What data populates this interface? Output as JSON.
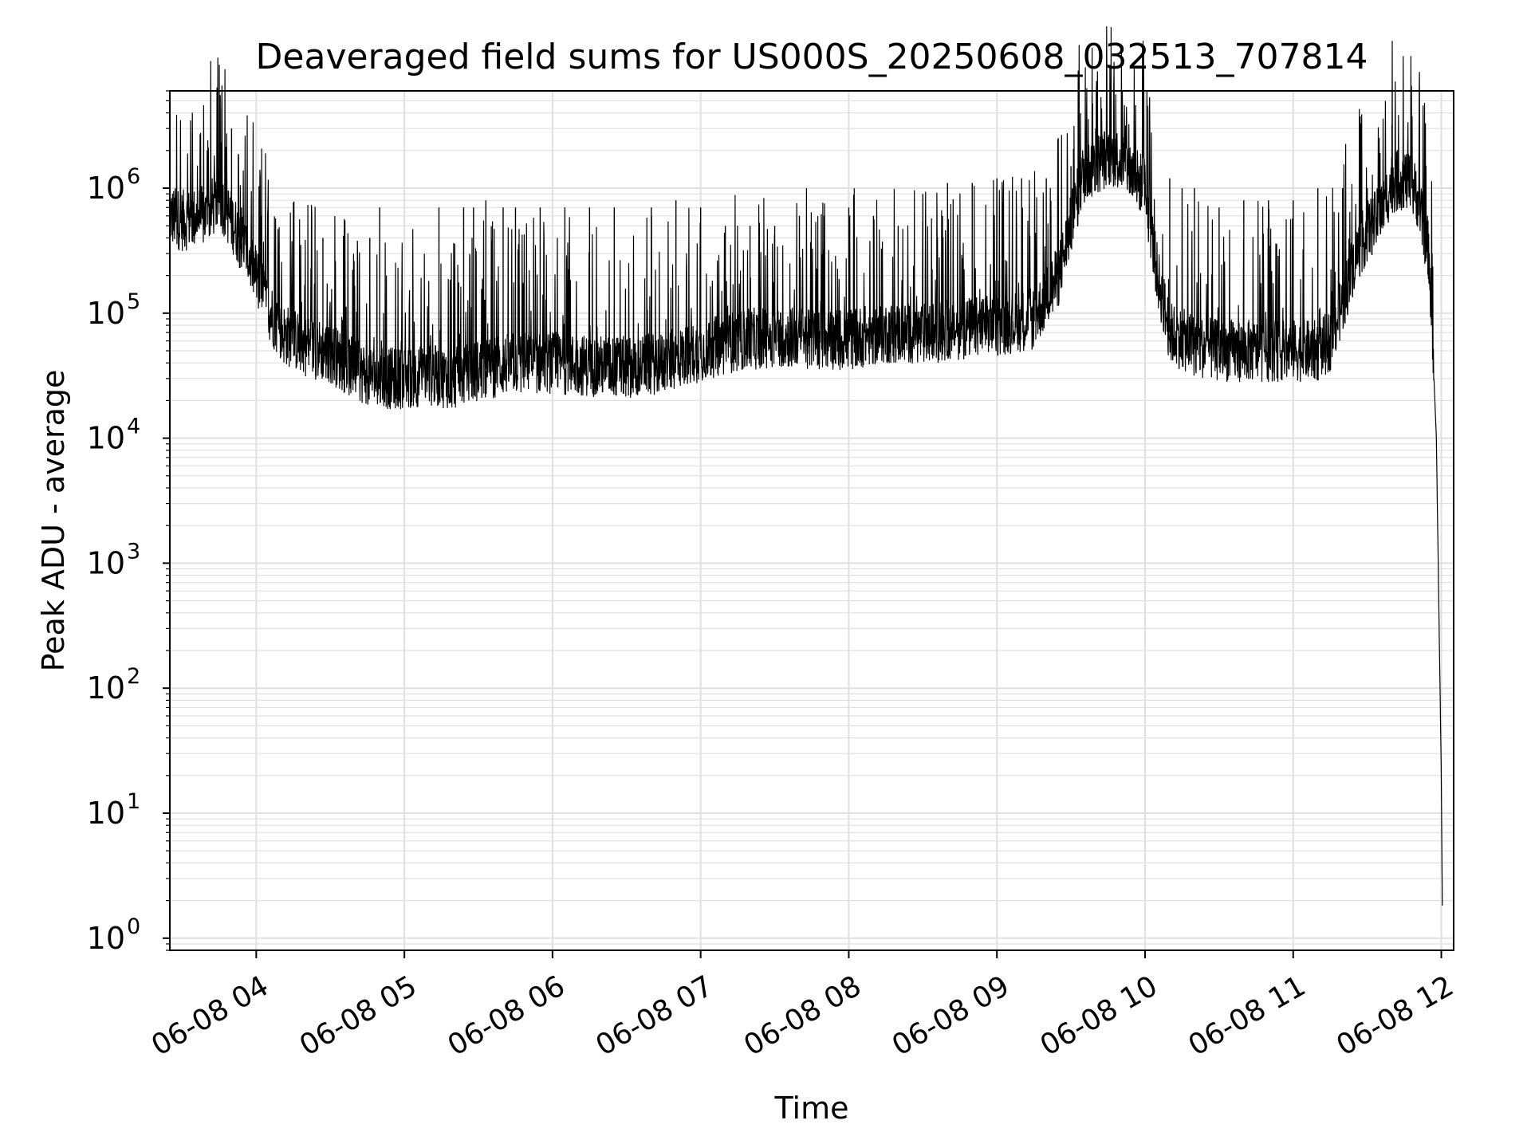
{
  "chart_data": {
    "type": "line",
    "title": "Deaveraged field sums for US000S_20250608_032513_707814",
    "xlabel": "Time",
    "ylabel": "Peak ADU - average",
    "yscale": "log",
    "grid": true,
    "legend": "none",
    "line_color": "#000000",
    "grid_color": "#e0e0e0",
    "x_range": [
      "2025-06-08 03:25",
      "2025-06-08 12:05"
    ],
    "ylim": [
      0.8,
      6000000
    ],
    "x_ticks": [
      "06-08 04",
      "06-08 05",
      "06-08 06",
      "06-08 07",
      "06-08 08",
      "06-08 09",
      "06-08 10",
      "06-08 11",
      "06-08 12"
    ],
    "y_ticks": [
      {
        "value": 1,
        "base": "10",
        "exp": "0"
      },
      {
        "value": 10,
        "base": "10",
        "exp": "1"
      },
      {
        "value": 100,
        "base": "10",
        "exp": "2"
      },
      {
        "value": 1000,
        "base": "10",
        "exp": "3"
      },
      {
        "value": 10000,
        "base": "10",
        "exp": "4"
      },
      {
        "value": 100000,
        "base": "10",
        "exp": "5"
      },
      {
        "value": 1000000,
        "base": "10",
        "exp": "6"
      }
    ],
    "series": [
      {
        "baseline": {
          "x": [
            "03:25",
            "03:30",
            "03:40",
            "03:45",
            "03:50",
            "03:55",
            "04:00",
            "04:05",
            "04:10",
            "04:20",
            "04:30",
            "04:40",
            "04:50",
            "05:00",
            "05:10",
            "05:20",
            "05:30",
            "05:45",
            "06:00",
            "06:15",
            "06:30",
            "06:45",
            "07:00",
            "07:15",
            "07:30",
            "07:45",
            "08:00",
            "08:15",
            "08:30",
            "08:45",
            "09:00",
            "09:15",
            "09:25",
            "09:35",
            "09:45",
            "09:50",
            "10:00",
            "10:05",
            "10:10",
            "10:20",
            "10:30",
            "10:40",
            "10:50",
            "11:00",
            "11:10",
            "11:15",
            "11:20",
            "11:25",
            "11:30",
            "11:35",
            "11:40",
            "11:45",
            "11:50",
            "11:55",
            "11:58",
            "12:00",
            "12:00:30"
          ],
          "y": [
            600000,
            550000,
            600000,
            850000,
            550000,
            350000,
            200000,
            110000,
            70000,
            55000,
            48000,
            35000,
            30000,
            30000,
            32000,
            30000,
            35000,
            40000,
            40000,
            38000,
            37000,
            40000,
            50000,
            60000,
            65000,
            63000,
            62000,
            70000,
            68000,
            75000,
            80000,
            90000,
            200000,
            1300000,
            1800000,
            1700000,
            1000000,
            200000,
            70000,
            55000,
            50000,
            50000,
            50000,
            50000,
            50000,
            60000,
            120000,
            280000,
            450000,
            600000,
            1100000,
            1200000,
            900000,
            300000,
            10000,
            20,
            1
          ]
        },
        "spikes": {
          "x": [
            "03:50",
            "03:54",
            "04:02",
            "04:27",
            "04:46",
            "04:50",
            "05:14",
            "05:24",
            "05:28",
            "05:33",
            "05:40",
            "05:45",
            "05:55",
            "06:05",
            "06:15",
            "06:25",
            "06:40",
            "06:50",
            "07:00",
            "07:10",
            "07:20",
            "07:30",
            "07:40",
            "07:50",
            "08:00",
            "08:10",
            "08:20",
            "08:30",
            "08:40",
            "08:50",
            "09:00",
            "09:10",
            "09:20",
            "09:30",
            "09:40",
            "09:48",
            "10:10",
            "10:15",
            "10:20",
            "10:30",
            "10:40",
            "10:50",
            "11:00",
            "11:10",
            "11:20",
            "11:30",
            "11:40",
            "11:45"
          ],
          "y": [
            3000000,
            700000,
            600000,
            400000,
            400000,
            700000,
            700000,
            700000,
            700000,
            800000,
            700000,
            700000,
            700000,
            700000,
            700000,
            700000,
            700000,
            800000,
            700000,
            500000,
            500000,
            500000,
            600000,
            600000,
            700000,
            600000,
            500000,
            900000,
            1100000,
            1100000,
            1200000,
            1200000,
            1200000,
            1500000,
            3000000,
            2500000,
            1200000,
            1000000,
            1000000,
            700000,
            800000,
            800000,
            800000,
            1000000,
            1000000,
            1000000,
            3200000,
            1300000
          ]
        }
      }
    ]
  }
}
